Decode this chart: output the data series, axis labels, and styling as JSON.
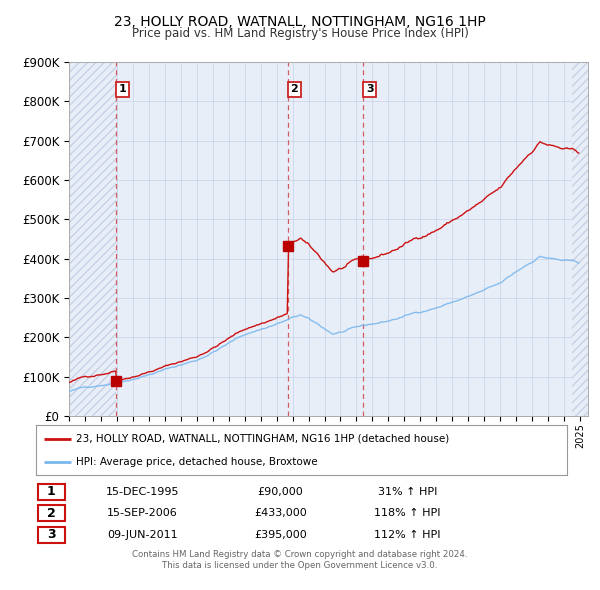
{
  "title": "23, HOLLY ROAD, WATNALL, NOTTINGHAM, NG16 1HP",
  "subtitle": "Price paid vs. HM Land Registry's House Price Index (HPI)",
  "ylim": [
    0,
    900000
  ],
  "yticks": [
    0,
    100000,
    200000,
    300000,
    400000,
    500000,
    600000,
    700000,
    800000,
    900000
  ],
  "ytick_labels": [
    "£0",
    "£100K",
    "£200K",
    "£300K",
    "£400K",
    "£500K",
    "£600K",
    "£700K",
    "£800K",
    "£900K"
  ],
  "xlim_start": 1993.0,
  "xlim_end": 2025.5,
  "background_color": "#e8eef8",
  "hatch_color": "#c8d0e4",
  "grid_color": "#c8d2e8",
  "hpi_line_color": "#7ab8ee",
  "price_line_color": "#cc1111",
  "marker_color": "#bb0000",
  "vline_color": "#cc4444",
  "sale_marker_size": 7,
  "transactions": [
    {
      "label": "1",
      "date_num": 1995.96,
      "price": 90000
    },
    {
      "label": "2",
      "date_num": 2006.71,
      "price": 433000
    },
    {
      "label": "3",
      "date_num": 2011.44,
      "price": 395000
    }
  ],
  "transaction_table": [
    {
      "num": "1",
      "date": "15-DEC-1995",
      "price": "£90,000",
      "hpi": "31% ↑ HPI"
    },
    {
      "num": "2",
      "date": "15-SEP-2006",
      "price": "£433,000",
      "hpi": "118% ↑ HPI"
    },
    {
      "num": "3",
      "date": "09-JUN-2011",
      "price": "£395,000",
      "hpi": "112% ↑ HPI"
    }
  ],
  "legend_line1": "23, HOLLY ROAD, WATNALL, NOTTINGHAM, NG16 1HP (detached house)",
  "legend_line2": "HPI: Average price, detached house, Broxtowe",
  "footer1": "Contains HM Land Registry data © Crown copyright and database right 2024.",
  "footer2": "This data is licensed under the Open Government Licence v3.0."
}
